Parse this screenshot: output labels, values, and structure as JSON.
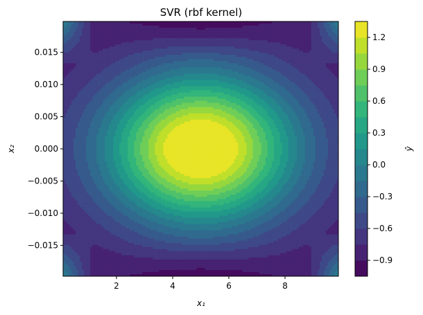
{
  "chart_data": {
    "type": "heatmap",
    "subtype": "filled-contour",
    "title": "SVR (rbf kernel)",
    "xlabel": "x₁",
    "ylabel": "x₂",
    "colorbar_label": "ŷ",
    "colormap": "viridis",
    "xlim": [
      0.1,
      9.9
    ],
    "ylim": [
      -0.0198,
      0.0198
    ],
    "x_ticks": [
      2,
      4,
      6,
      8
    ],
    "x_tick_labels": [
      "2",
      "4",
      "6",
      "8"
    ],
    "y_ticks": [
      -0.015,
      -0.01,
      -0.005,
      0.0,
      0.005,
      0.01,
      0.015
    ],
    "y_tick_labels": [
      "−0.015",
      "−0.010",
      "−0.005",
      "0.000",
      "0.005",
      "0.010",
      "0.015"
    ],
    "colorbar_range": [
      -1.05,
      1.35
    ],
    "colorbar_ticks": [
      -0.9,
      -0.6,
      -0.3,
      0.0,
      0.3,
      0.6,
      0.9,
      1.2
    ],
    "colorbar_tick_labels": [
      "−0.9",
      "−0.6",
      "−0.3",
      "0.0",
      "0.3",
      "0.6",
      "0.9",
      "1.2"
    ],
    "levels": [
      -1.05,
      -0.9,
      -0.75,
      -0.6,
      -0.45,
      -0.3,
      -0.15,
      0.0,
      0.15,
      0.3,
      0.45,
      0.6,
      0.75,
      0.9,
      1.05,
      1.2,
      1.35
    ],
    "peak": {
      "x1": 5.0,
      "x2": 0.0,
      "y_hat": 1.28
    },
    "surface_samples": [
      {
        "x1": 5.0,
        "x2": 0.0,
        "y_hat": 1.28
      },
      {
        "x1": 5.0,
        "x2": 0.019,
        "y_hat": -0.95
      },
      {
        "x1": 5.0,
        "x2": -0.019,
        "y_hat": -0.95
      },
      {
        "x1": 0.3,
        "x2": 0.0,
        "y_hat": -0.55
      },
      {
        "x1": 9.7,
        "x2": 0.0,
        "y_hat": -0.55
      },
      {
        "x1": 0.3,
        "x2": 0.019,
        "y_hat": 0.1
      },
      {
        "x1": 0.3,
        "x2": -0.019,
        "y_hat": 0.2
      }
    ]
  }
}
